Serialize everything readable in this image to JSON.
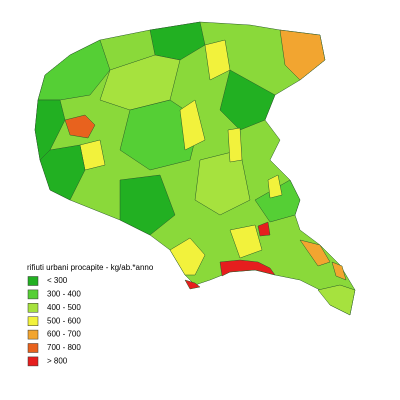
{
  "legend": {
    "title": "rifiuti urbani procapite - kg/ab.*anno",
    "items": [
      {
        "label": "< 300",
        "color": "#22b022"
      },
      {
        "label": "300 - 400",
        "color": "#55cf35"
      },
      {
        "label": "400 - 500",
        "color": "#a6e23e"
      },
      {
        "label": "500 - 600",
        "color": "#f2f23c"
      },
      {
        "label": "600 - 700",
        "color": "#f2a530"
      },
      {
        "label": "700 - 800",
        "color": "#e8621e"
      },
      {
        "label": "> 800",
        "color": "#e61e1e"
      }
    ]
  }
}
